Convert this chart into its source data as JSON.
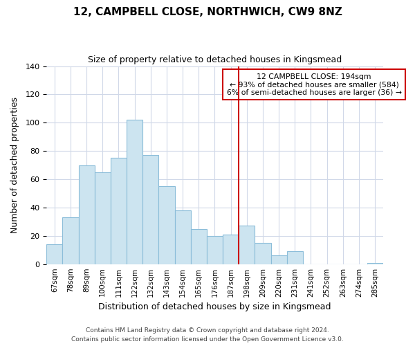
{
  "title": "12, CAMPBELL CLOSE, NORTHWICH, CW9 8NZ",
  "subtitle": "Size of property relative to detached houses in Kingsmead",
  "xlabel": "Distribution of detached houses by size in Kingsmead",
  "ylabel": "Number of detached properties",
  "bar_labels": [
    "67sqm",
    "78sqm",
    "89sqm",
    "100sqm",
    "111sqm",
    "122sqm",
    "132sqm",
    "143sqm",
    "154sqm",
    "165sqm",
    "176sqm",
    "187sqm",
    "198sqm",
    "209sqm",
    "220sqm",
    "231sqm",
    "241sqm",
    "252sqm",
    "263sqm",
    "274sqm",
    "285sqm"
  ],
  "bar_heights": [
    14,
    33,
    70,
    65,
    75,
    102,
    77,
    55,
    38,
    25,
    20,
    21,
    27,
    15,
    6,
    9,
    0,
    0,
    0,
    0,
    1
  ],
  "bar_color": "#cce4f0",
  "bar_edge_color": "#8bbdd9",
  "vline_color": "#cc0000",
  "vline_pos": 11.5,
  "ylim": [
    0,
    140
  ],
  "annotation_title": "12 CAMPBELL CLOSE: 194sqm",
  "annotation_line1": "← 93% of detached houses are smaller (584)",
  "annotation_line2": "6% of semi-detached houses are larger (36) →",
  "footer1": "Contains HM Land Registry data © Crown copyright and database right 2024.",
  "footer2": "Contains public sector information licensed under the Open Government Licence v3.0.",
  "background_color": "#ffffff",
  "grid_color": "#d0d8e8"
}
